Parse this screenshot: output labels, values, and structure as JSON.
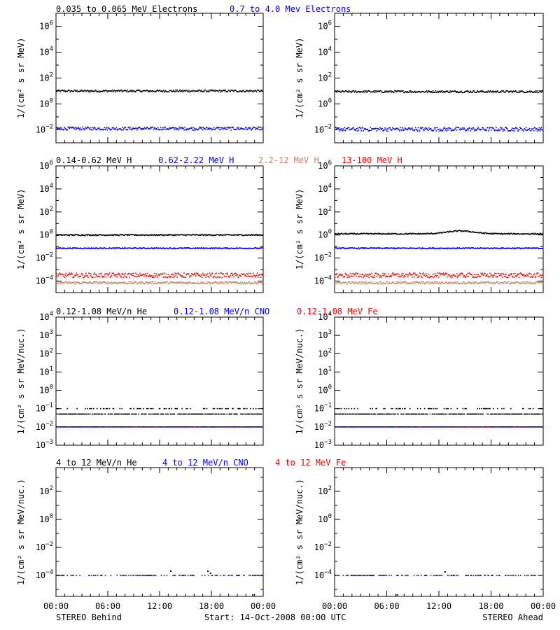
{
  "colors": {
    "axis": "#000000",
    "black": "#000000",
    "blue": "#0000ff",
    "red": "#ff0000",
    "salmon": "#d2691e"
  },
  "legend_rows": [
    [
      {
        "text": "0.035 to 0.065 MeV Electrons",
        "color": "#000000"
      },
      {
        "text": "0.7 to 4.0 Mev Electrons",
        "color": "#0000ff"
      }
    ],
    [
      {
        "text": "0.14-0.62 MeV H",
        "color": "#000000"
      },
      {
        "text": "0.62-2.22 MeV H",
        "color": "#0000ff"
      },
      {
        "text": "2.2-12 MeV H",
        "color": "#c88264"
      },
      {
        "text": "13-100 MeV H",
        "color": "#ff0000"
      }
    ],
    [
      {
        "text": "0.12-1.08 MeV/n He",
        "color": "#000000"
      },
      {
        "text": "0.12-1.08 MeV/n CNO",
        "color": "#0000ff"
      },
      {
        "text": "0.12-1.08 MeV Fe",
        "color": "#ff0000"
      }
    ],
    [
      {
        "text": "4 to 12 MeV/n He",
        "color": "#000000"
      },
      {
        "text": "4 to 12 MeV/n CNO",
        "color": "#0000ff"
      },
      {
        "text": "4 to 12 MeV Fe",
        "color": "#ff0000"
      }
    ]
  ],
  "footer": {
    "left": "STEREO Behind",
    "center": "Start: 14-Oct-2008 00:00 UTC",
    "right": "STEREO Ahead"
  },
  "x_tick_labels": [
    "00:00",
    "06:00",
    "12:00",
    "18:00",
    "00:00"
  ],
  "chart_data": [
    {
      "type": "scatter",
      "row": 0,
      "side": "behind",
      "ylabel": "1/(cm² s sr MeV)",
      "ylim_log10": [
        -3,
        7
      ],
      "ytick_exponents": [
        -2,
        0,
        2,
        4,
        6
      ],
      "xlim_hours": [
        0,
        24
      ],
      "series": [
        {
          "name": "0.035 to 0.065 MeV Electrons",
          "color": "#000000",
          "y_log10": 1.0,
          "scatter": 0.08
        },
        {
          "name": "0.7 to 4.0 Mev Electrons",
          "color": "#0000ff",
          "y_log10": -1.9,
          "scatter": 0.12
        }
      ]
    },
    {
      "type": "scatter",
      "row": 0,
      "side": "ahead",
      "ylabel": "1/(cm² s sr MeV)",
      "ylim_log10": [
        -3,
        7
      ],
      "ytick_exponents": [
        -2,
        0,
        2,
        4,
        6
      ],
      "xlim_hours": [
        0,
        24
      ],
      "series": [
        {
          "name": "0.035 to 0.065 MeV Electrons",
          "color": "#000000",
          "y_log10": 0.95,
          "scatter": 0.08
        },
        {
          "name": "0.7 to 4.0 Mev Electrons",
          "color": "#0000ff",
          "y_log10": -1.95,
          "scatter": 0.15
        }
      ]
    },
    {
      "type": "scatter",
      "row": 1,
      "side": "behind",
      "ylabel": "1/(cm² s sr MeV)",
      "ylim_log10": [
        -5,
        6
      ],
      "ytick_exponents": [
        -4,
        -2,
        0,
        2,
        4,
        6
      ],
      "xlim_hours": [
        0,
        24
      ],
      "series": [
        {
          "name": "0.14-0.62 MeV H",
          "color": "#000000",
          "y_log10": 0.0,
          "scatter": 0.05
        },
        {
          "name": "0.62-2.22 MeV H",
          "color": "#0000ff",
          "y_log10": -1.15,
          "scatter": 0.05
        },
        {
          "name": "2.2-12 MeV H",
          "color": "#c88264",
          "y_log10": -4.15,
          "scatter": 0.1
        },
        {
          "name": "13-100 MeV H",
          "color": "#ff0000",
          "y_log10": -3.5,
          "scatter": 0.2
        }
      ]
    },
    {
      "type": "scatter",
      "row": 1,
      "side": "ahead",
      "ylabel": "1/(cm² s sr MeV)",
      "ylim_log10": [
        -5,
        6
      ],
      "ytick_exponents": [
        -4,
        -2,
        0,
        2,
        4,
        6
      ],
      "xlim_hours": [
        0,
        24
      ],
      "series": [
        {
          "name": "0.14-0.62 MeV H",
          "color": "#000000",
          "y_log10": 0.1,
          "scatter": 0.05,
          "bump": {
            "center": 14.5,
            "width": 2.2,
            "height": 0.25
          }
        },
        {
          "name": "0.62-2.22 MeV H",
          "color": "#0000ff",
          "y_log10": -1.15,
          "scatter": 0.05
        },
        {
          "name": "2.2-12 MeV H",
          "color": "#c88264",
          "y_log10": -4.15,
          "scatter": 0.1
        },
        {
          "name": "13-100 MeV H",
          "color": "#ff0000",
          "y_log10": -3.5,
          "scatter": 0.2
        }
      ]
    },
    {
      "type": "scatter",
      "row": 2,
      "side": "behind",
      "ylabel": "1/(cm² s sr MeV/nuc.)",
      "ylim_log10": [
        -3,
        4
      ],
      "ytick_exponents": [
        -3,
        -2,
        -1,
        0,
        1,
        2,
        3,
        4
      ],
      "xlim_hours": [
        0,
        24
      ],
      "series": [
        {
          "name": "0.12-1.08 MeV/n He",
          "color": "#000000",
          "y_log10": -1.3,
          "scatter": 0.0,
          "upper_log10": -1.0,
          "upper_fraction": 0.25
        },
        {
          "name": "0.12-1.08 MeV/n CNO",
          "color": "#0000ff",
          "y_log10": -2.0,
          "scatter": 0.0
        },
        {
          "name": "0.12-1.08 MeV Fe",
          "color": "#ff0000",
          "y_log10": -2.0,
          "scatter": 0.0,
          "fraction": 0.15
        }
      ]
    },
    {
      "type": "scatter",
      "row": 2,
      "side": "ahead",
      "ylabel": "1/(cm² s sr MeV/nuc.)",
      "ylim_log10": [
        -3,
        4
      ],
      "ytick_exponents": [
        -3,
        -2,
        -1,
        0,
        1,
        2,
        3,
        4
      ],
      "xlim_hours": [
        0,
        24
      ],
      "series": [
        {
          "name": "0.12-1.08 MeV/n He",
          "color": "#000000",
          "y_log10": -1.3,
          "scatter": 0.0,
          "upper_log10": -1.0,
          "upper_fraction": 0.25
        },
        {
          "name": "0.12-1.08 MeV/n CNO",
          "color": "#0000ff",
          "y_log10": -2.0,
          "scatter": 0.0
        },
        {
          "name": "0.12-1.08 MeV Fe",
          "color": "#ff0000",
          "y_log10": -2.0,
          "scatter": 0.0,
          "fraction": 0.15
        }
      ]
    },
    {
      "type": "scatter",
      "row": 3,
      "side": "behind",
      "ylabel": "1/(cm² s sr MeV/nuc.)",
      "ylim_log10": [
        -5.5,
        3.7
      ],
      "ytick_exponents": [
        -4,
        -2,
        0,
        2
      ],
      "xlim_hours": [
        0,
        24
      ],
      "series": [
        {
          "name": "4 to 12 MeV/n CNO",
          "color": "#0000ff",
          "y_log10": -4.0,
          "scatter": 0.0,
          "fraction": 0.35
        },
        {
          "name": "4 to 12 MeV/n He",
          "color": "#000000",
          "points": [
            [
              13.3,
              -3.7
            ],
            [
              17.6,
              -3.7
            ],
            [
              17.9,
              -3.85
            ],
            [
              22.8,
              -5.4
            ]
          ]
        }
      ]
    },
    {
      "type": "scatter",
      "row": 3,
      "side": "ahead",
      "ylabel": "1/(cm² s sr MeV/nuc.)",
      "ylim_log10": [
        -5.5,
        3.7
      ],
      "ytick_exponents": [
        -4,
        -2,
        0,
        2
      ],
      "xlim_hours": [
        0,
        24
      ],
      "series": [
        {
          "name": "4 to 12 MeV/n CNO",
          "color": "#0000ff",
          "y_log10": -4.0,
          "scatter": 0.0,
          "fraction": 0.35
        },
        {
          "name": "4 to 12 MeV/n He",
          "color": "#000000",
          "points": [
            [
              12.7,
              -3.75
            ],
            [
              7.2,
              -5.4
            ]
          ]
        }
      ]
    }
  ]
}
